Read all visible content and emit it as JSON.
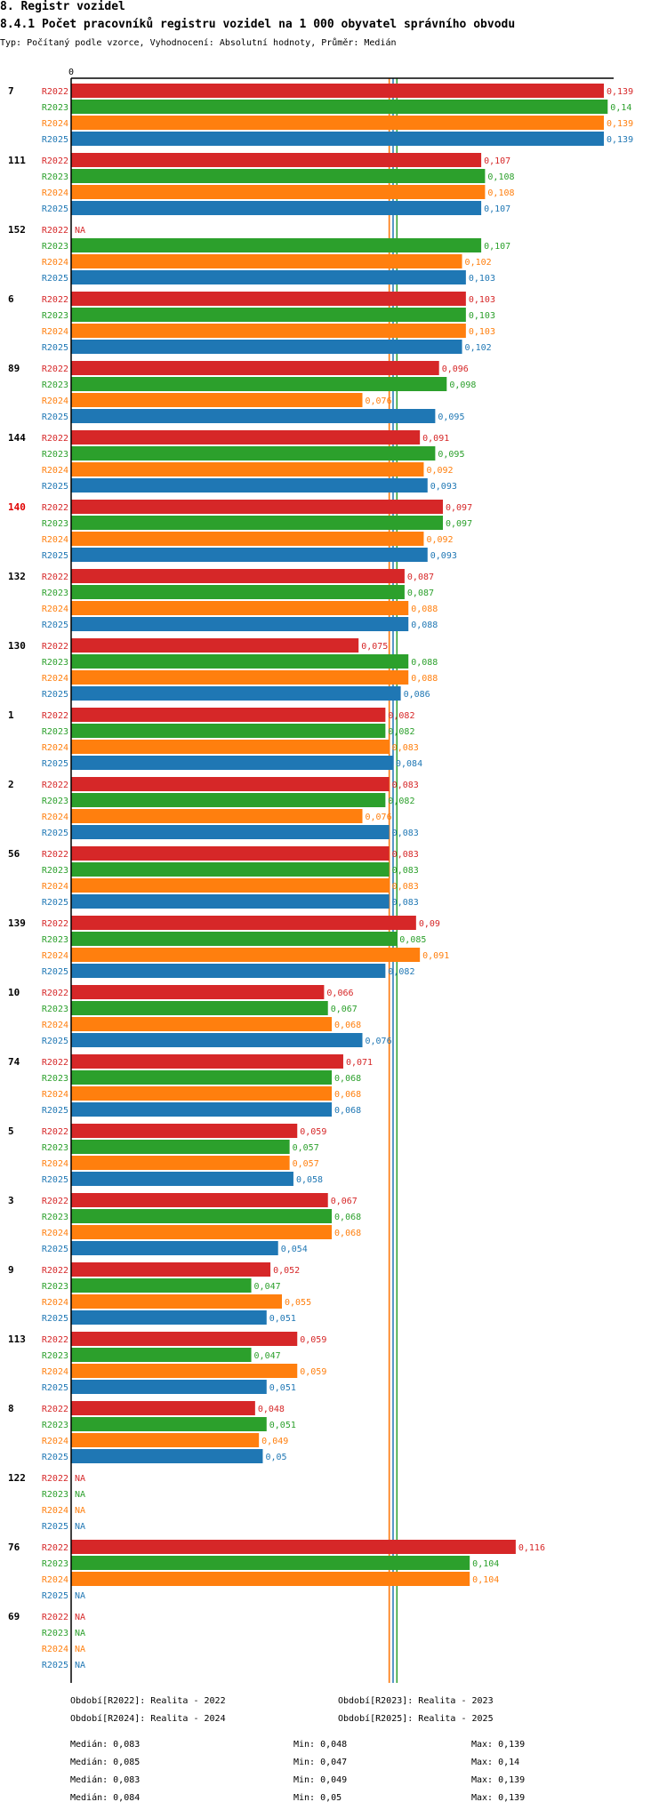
{
  "header": {
    "section": "8. Registr vozidel",
    "title": "8.4.1 Počet pracovníků registru vozidel na 1 000 obyvatel správního obvodu",
    "subtitle": "Typ: Počítaný podle vzorce, Vyhodnocení: Absolutní hodnoty, Průměr: Medián"
  },
  "colors": {
    "R2022": "#d62728",
    "R2023": "#2ca02c",
    "R2024": "#ff7f0e",
    "R2025": "#1f77b4",
    "highlight": "#e00000"
  },
  "chart_data": {
    "type": "bar",
    "orientation": "horizontal",
    "title": "8.4.1 Počet pracovníků registru vozidel na 1 000 obyvatel správního obvodu",
    "axis_zero_label": "0",
    "xlim": [
      0,
      0.139
    ],
    "series_names": [
      "R2022",
      "R2023",
      "R2024",
      "R2025"
    ],
    "highlight_category": "140",
    "missing_label": "NA",
    "categories": [
      "7",
      "111",
      "152",
      "6",
      "89",
      "144",
      "140",
      "132",
      "130",
      "1",
      "2",
      "56",
      "139",
      "10",
      "74",
      "5",
      "3",
      "9",
      "113",
      "8",
      "122",
      "76",
      "69"
    ],
    "values": [
      [
        0.139,
        0.14,
        0.139,
        0.139
      ],
      [
        0.107,
        0.108,
        0.108,
        0.107
      ],
      [
        null,
        0.107,
        0.102,
        0.103
      ],
      [
        0.103,
        0.103,
        0.103,
        0.102
      ],
      [
        0.096,
        0.098,
        0.076,
        0.095
      ],
      [
        0.091,
        0.095,
        0.092,
        0.093
      ],
      [
        0.097,
        0.097,
        0.092,
        0.093
      ],
      [
        0.087,
        0.087,
        0.088,
        0.088
      ],
      [
        0.075,
        0.088,
        0.088,
        0.086
      ],
      [
        0.082,
        0.082,
        0.083,
        0.084
      ],
      [
        0.083,
        0.082,
        0.076,
        0.083
      ],
      [
        0.083,
        0.083,
        0.083,
        0.083
      ],
      [
        0.09,
        0.085,
        0.091,
        0.082
      ],
      [
        0.066,
        0.067,
        0.068,
        0.076
      ],
      [
        0.071,
        0.068,
        0.068,
        0.068
      ],
      [
        0.059,
        0.057,
        0.057,
        0.058
      ],
      [
        0.067,
        0.068,
        0.068,
        0.054
      ],
      [
        0.052,
        0.047,
        0.055,
        0.051
      ],
      [
        0.059,
        0.047,
        0.059,
        0.051
      ],
      [
        0.048,
        0.051,
        0.049,
        0.05
      ],
      [
        null,
        null,
        null,
        null
      ],
      [
        0.116,
        0.104,
        0.104,
        null
      ],
      [
        null,
        null,
        null,
        null
      ]
    ],
    "medians": [
      0.083,
      0.085,
      0.083,
      0.084
    ]
  },
  "legend": {
    "periods": [
      "Období[R2022]: Realita - 2022",
      "Období[R2023]: Realita - 2023",
      "Období[R2024]: Realita - 2024",
      "Období[R2025]: Realita - 2025"
    ],
    "stats": [
      {
        "median": "Medián: 0,083",
        "min": "Min: 0,048",
        "max": "Max: 0,139"
      },
      {
        "median": "Medián: 0,085",
        "min": "Min: 0,047",
        "max": "Max: 0,14"
      },
      {
        "median": "Medián: 0,083",
        "min": "Min: 0,049",
        "max": "Max: 0,139"
      },
      {
        "median": "Medián: 0,084",
        "min": "Min: 0,05",
        "max": "Max: 0,139"
      }
    ]
  }
}
